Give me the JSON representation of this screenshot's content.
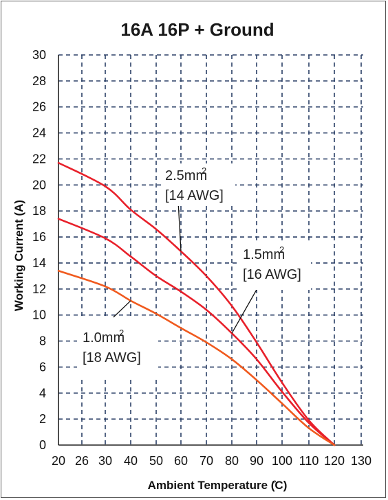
{
  "chart_data": {
    "type": "line",
    "title": "16A 16P + Ground",
    "xlabel": "Ambient Temperature (̊C)",
    "ylabel": "Working Current (A)",
    "xlim": [
      20,
      130
    ],
    "ylim": [
      0,
      30
    ],
    "x_ticks": [
      "20",
      "26",
      "30",
      "40",
      "50",
      "60",
      "70",
      "80",
      "90",
      "100",
      "110",
      "120",
      "130"
    ],
    "y_ticks": [
      "0",
      "2",
      "4",
      "6",
      "8",
      "10",
      "12",
      "14",
      "16",
      "18",
      "20",
      "22",
      "24",
      "26",
      "28",
      "30"
    ],
    "grid": true,
    "grid_style": "dashed",
    "series": [
      {
        "name": "2.5mm2 [14 AWG]",
        "color": "#e8202a",
        "x": [
          20,
          30,
          40,
          50,
          60,
          70,
          80,
          90,
          100,
          110,
          120
        ],
        "y": [
          21.7,
          19.9,
          18.1,
          16.6,
          14.9,
          13.0,
          10.7,
          7.9,
          4.8,
          1.9,
          0
        ]
      },
      {
        "name": "1.5mm2 [16 AWG]",
        "color": "#e8202a",
        "x": [
          20,
          30,
          40,
          50,
          60,
          70,
          80,
          90,
          100,
          110,
          120
        ],
        "y": [
          17.4,
          15.9,
          14.5,
          13.0,
          11.8,
          10.4,
          8.6,
          6.6,
          4.1,
          1.7,
          0
        ]
      },
      {
        "name": "1.0mm2 [18 AWG]",
        "color": "#f05a1e",
        "x": [
          20,
          30,
          40,
          50,
          60,
          70,
          80,
          90,
          100,
          110,
          120
        ],
        "y": [
          13.4,
          12.2,
          11.1,
          10.1,
          9.0,
          7.9,
          6.6,
          5.0,
          3.2,
          1.3,
          0
        ]
      }
    ],
    "annotations": [
      {
        "line1": "2.5mm",
        "sup": "2",
        "line2": "[14 AWG]",
        "series": 0
      },
      {
        "line1": "1.5mm",
        "sup": "2",
        "line2": "[16 AWG]",
        "series": 1
      },
      {
        "line1": "1.0mm",
        "sup": "2",
        "line2": "[18 AWG]",
        "series": 2
      }
    ]
  }
}
